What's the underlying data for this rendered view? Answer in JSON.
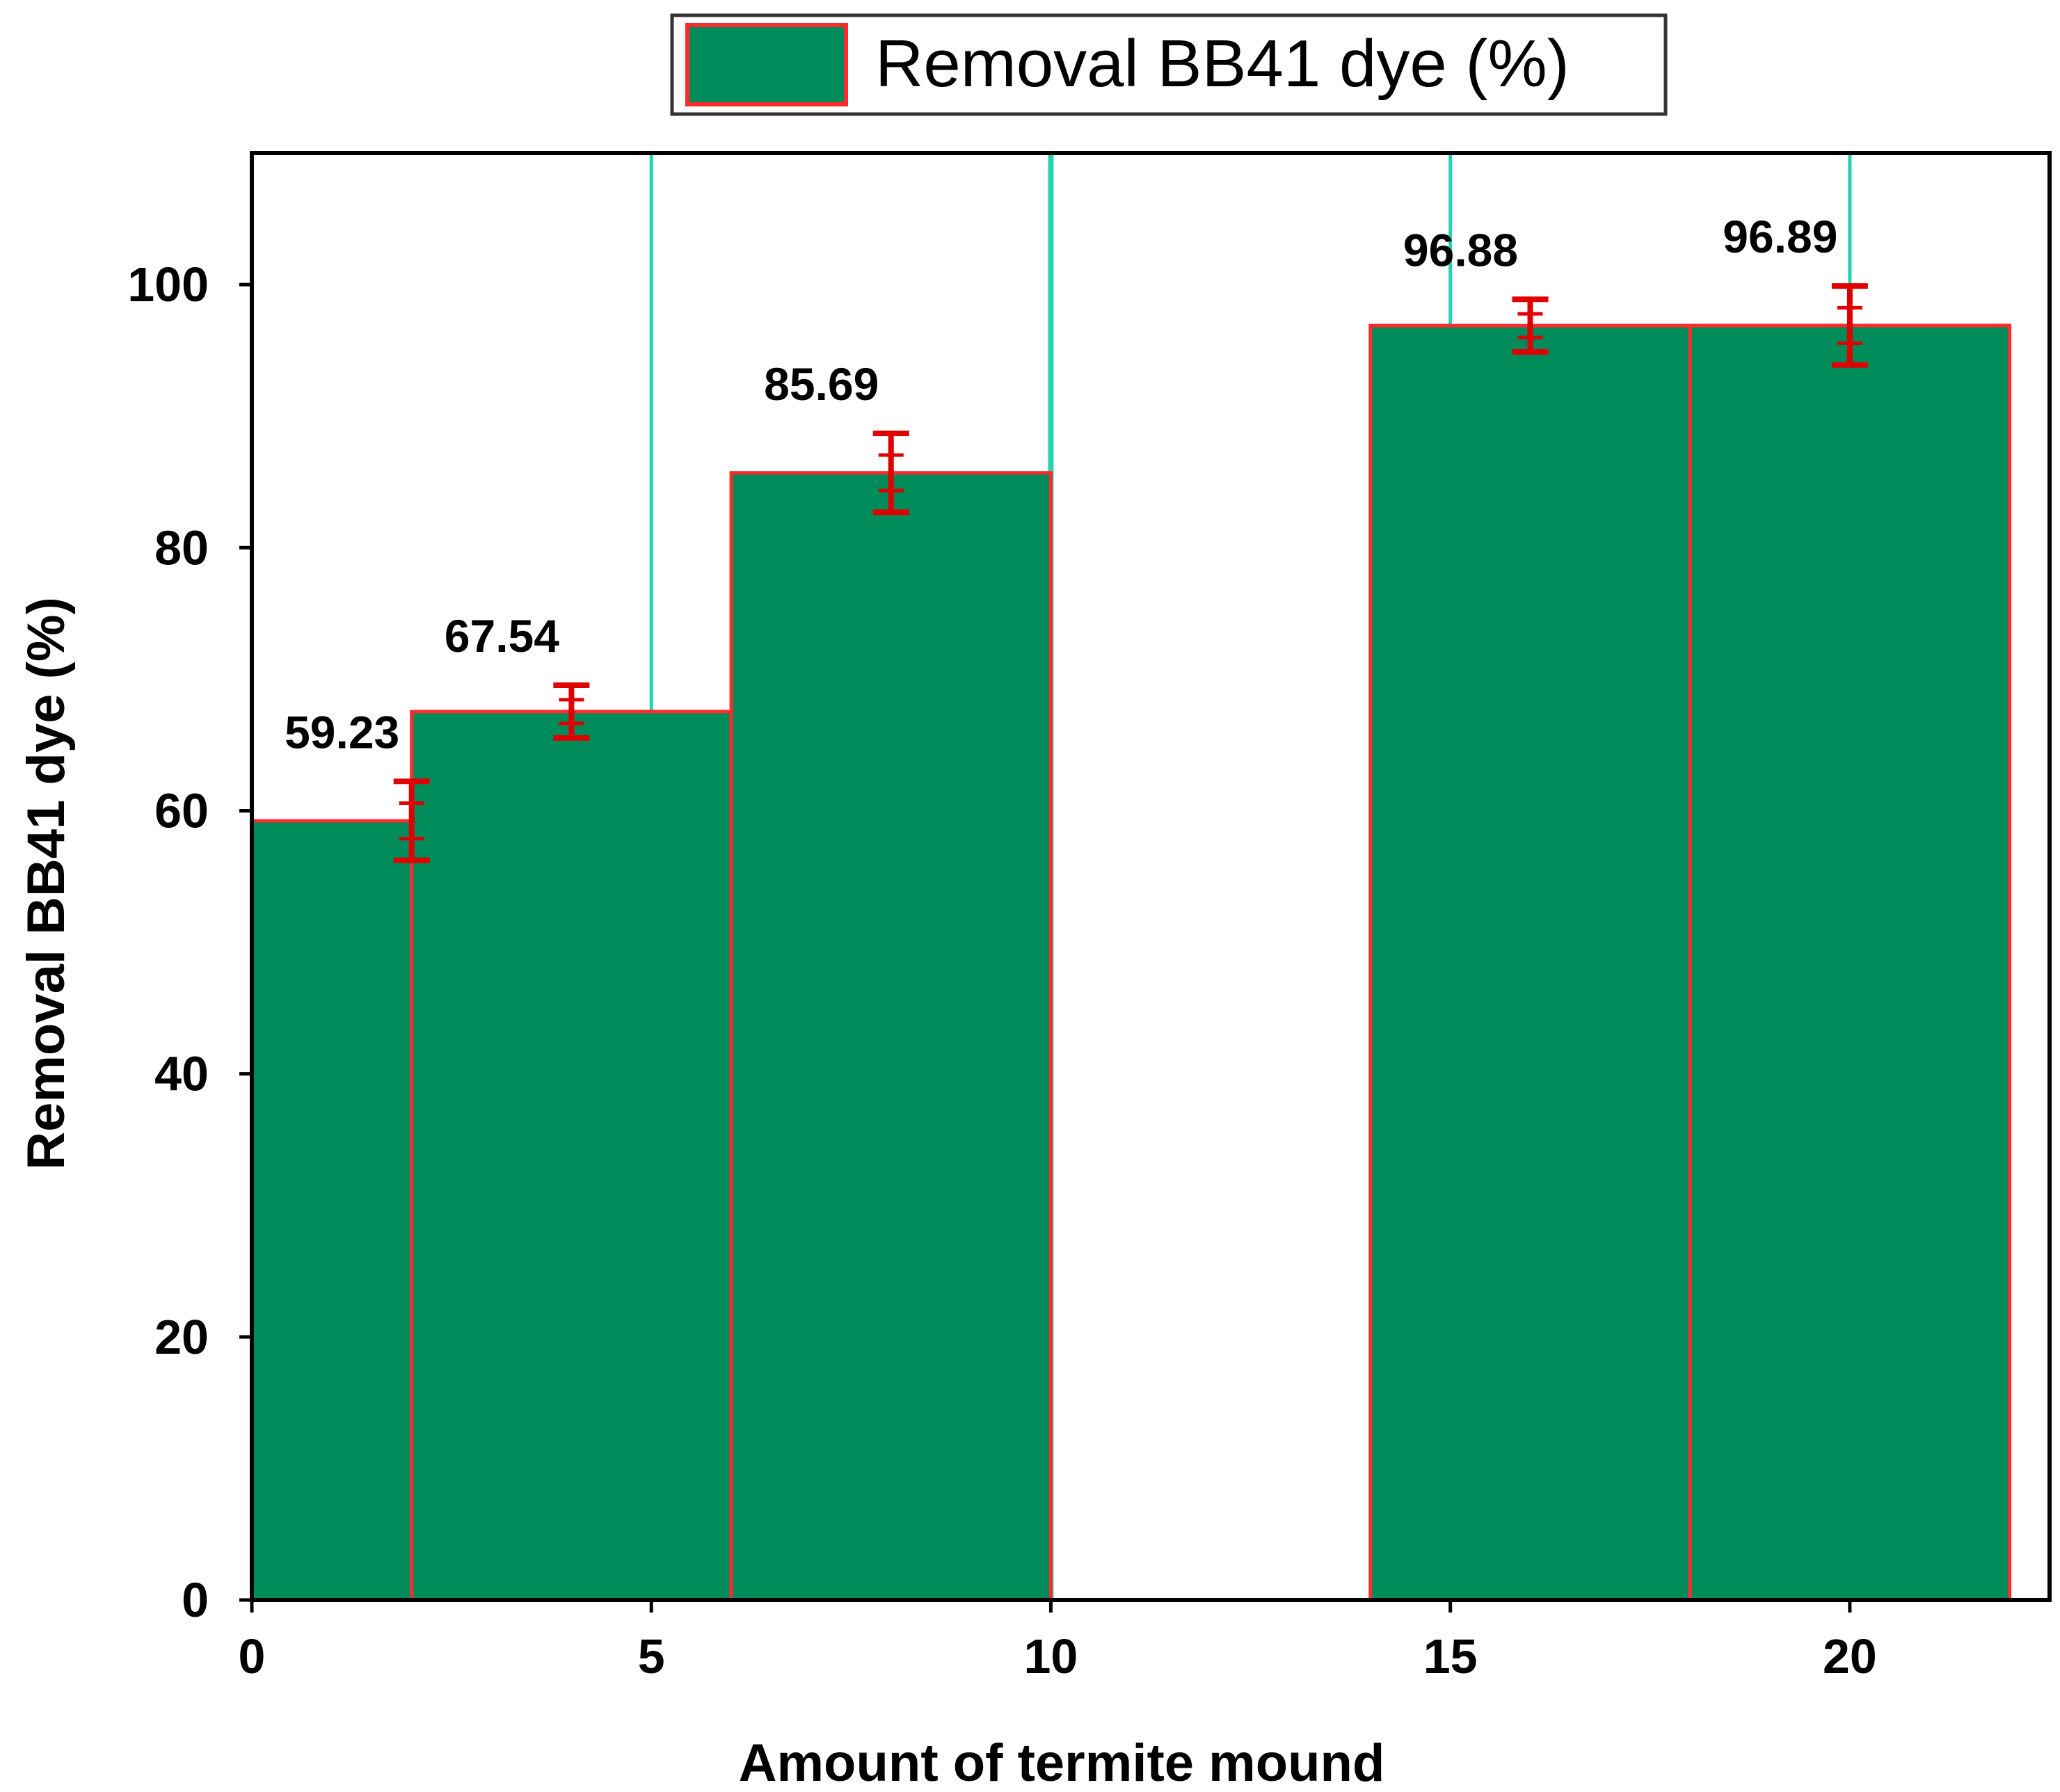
{
  "chart_data": {
    "type": "bar",
    "legend": {
      "label": "Removal BB41 dye (%)",
      "position": "top"
    },
    "xlabel": "Amount of termite mound",
    "ylabel": "Removal BB41 dye (%)",
    "xlim": [
      0,
      22.5
    ],
    "ylim": [
      0,
      110
    ],
    "xticks": [
      0,
      5,
      10,
      15,
      20
    ],
    "yticks": [
      0,
      20,
      40,
      60,
      80,
      100
    ],
    "grid": "vertical lines at x = 5, 10, 15, 20",
    "bars": [
      {
        "x": 2,
        "value": 59.23,
        "label": "59.23",
        "error": 3.0
      },
      {
        "x": 4,
        "value": 67.54,
        "label": "67.54",
        "error": 2.0
      },
      {
        "x": 8,
        "value": 85.69,
        "label": "85.69",
        "error": 3.0
      },
      {
        "x": 16,
        "value": 96.88,
        "label": "96.88",
        "error": 2.0
      },
      {
        "x": 20,
        "value": 96.89,
        "label": "96.89",
        "error": 3.0
      }
    ],
    "colors": {
      "bar_fill": "#008c5a",
      "bar_edge": "#ff2a2a",
      "error_bar": "#e00000",
      "grid": "#22d4b0",
      "frame": "#000000"
    }
  }
}
